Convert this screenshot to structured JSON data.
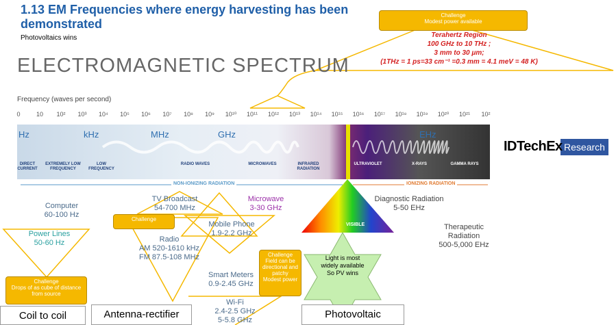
{
  "header": {
    "title": "1.13 EM Frequencies where energy harvesting has been demonstrated",
    "subtitle": "Photovoltaics wins"
  },
  "terahertz": {
    "challenge": [
      "Challenge",
      "Modest power available"
    ],
    "lines": [
      "Terahertz Region",
      "100 GHz to 10 THz ;",
      "3 mm to 30 μm;",
      "(1THz = 1 ps=33 cm⁻¹ =0.3 mm = 4.1 meV = 48 K)"
    ]
  },
  "spectrum": {
    "heading": "ELECTROMAGNETIC SPECTRUM",
    "axis_label": "Frequency (waves per second)",
    "ticks": [
      "0",
      "10",
      "10²",
      "10³",
      "10⁴",
      "10⁵",
      "10⁶",
      "10⁷",
      "10⁸",
      "10⁹",
      "10¹⁰",
      "10¹¹",
      "10¹²",
      "10¹³",
      "10¹⁴",
      "10¹⁵",
      "10¹⁶",
      "10¹⁷",
      "10¹⁸",
      "10¹⁹",
      "10²⁰",
      "10²¹",
      "10²"
    ],
    "bands": [
      "Hz",
      "kHz",
      "MHz",
      "GHz",
      "EHz"
    ],
    "regions": [
      "DIRECT CURRENT",
      "EXTREMELY LOW FREQUENCY",
      "LOW FREQUENCY",
      "RADIO WAVES",
      "MICROWAVES",
      "INFRARED RADIATION",
      "ULTRAVIOLET",
      "X-RAYS",
      "GAMMA RAYS"
    ],
    "non_ionizing": "NON-IONIZING RADIATION",
    "ionizing": "IONIZING RADIATION",
    "visible": "VISIBLE"
  },
  "brand": {
    "name": "IDTechEx",
    "tag": "Research"
  },
  "applications": {
    "computer": [
      "Computer",
      "60-100 Hz"
    ],
    "tv": [
      "TV Broadcast",
      "54-700 MHz"
    ],
    "microwave": [
      "Microwave",
      "3-30 GHz"
    ],
    "diagnostic": [
      "Diagnostic Radiation",
      "5-50 EHz"
    ],
    "mobile": [
      "Mobile Phone",
      "1.9-2.2 GHz"
    ],
    "radio": [
      "Radio",
      "AM 520-1610 kHz",
      "FM 87.5-108 MHz"
    ],
    "power": [
      "Power Lines",
      "50-60 Hz"
    ],
    "therapeutic": [
      "Therapeutic",
      "Radiation",
      "500-5,000 EHz"
    ],
    "smart": [
      "Smart Meters",
      "0.9-2.45 GHz"
    ],
    "wifi": [
      "Wi-Fi",
      "2.4-2.5 GHz",
      "5-5.8 GHz"
    ]
  },
  "challenges": {
    "antenna": [
      "Challenge"
    ],
    "coil": [
      "Challenge",
      "Drops of as cube of distance from source"
    ],
    "field": [
      "Challenge",
      "Field can be directional and patchy",
      "Modest power"
    ]
  },
  "star": [
    "Light is most widely available",
    "So PV wins"
  ],
  "methods": [
    "Coil to coil",
    "Antenna-rectifier",
    "Photovoltaic"
  ]
}
